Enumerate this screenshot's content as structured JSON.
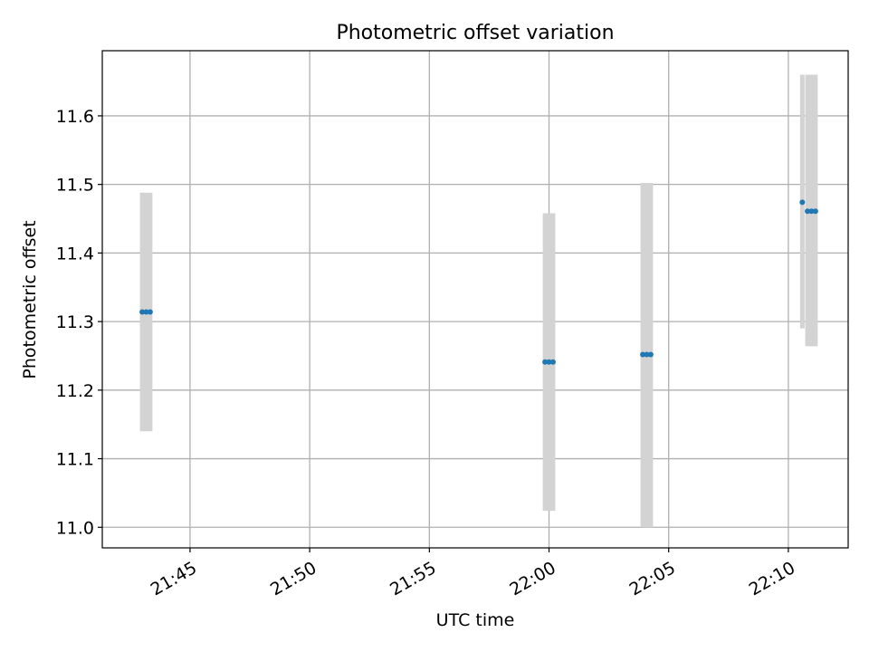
{
  "chart_data": {
    "type": "scatter",
    "title": "Photometric offset variation",
    "xlabel": "UTC time",
    "ylabel": "Photometric offset",
    "x_axis_kind": "time",
    "xlim": [
      "21:41:20",
      "22:12:30"
    ],
    "ylim": [
      10.97,
      11.695
    ],
    "x_ticks": [
      "21:45",
      "21:50",
      "21:55",
      "22:00",
      "22:05",
      "22:10"
    ],
    "y_ticks": [
      "11.0",
      "11.1",
      "11.2",
      "11.3",
      "11.4",
      "11.5",
      "11.6"
    ],
    "grid": true,
    "colors": {
      "points": "#1f77b4",
      "error_bars": "#d3d3d3",
      "grid": "#b0b0b0",
      "axes": "#000000"
    },
    "series": [
      {
        "points": [
          {
            "time": "21:43:00",
            "y": 11.314,
            "yerr_low": 11.14,
            "yerr_high": 11.488
          },
          {
            "time": "21:43:10",
            "y": 11.314,
            "yerr_low": 11.14,
            "yerr_high": 11.488
          },
          {
            "time": "21:43:20",
            "y": 11.314,
            "yerr_low": 11.14,
            "yerr_high": 11.488
          },
          {
            "time": "21:59:50",
            "y": 11.241,
            "yerr_low": 11.024,
            "yerr_high": 11.458
          },
          {
            "time": "22:00:00",
            "y": 11.241,
            "yerr_low": 11.024,
            "yerr_high": 11.458
          },
          {
            "time": "22:00:10",
            "y": 11.241,
            "yerr_low": 11.024,
            "yerr_high": 11.458
          },
          {
            "time": "22:03:55",
            "y": 11.252,
            "yerr_low": 11.0,
            "yerr_high": 11.502
          },
          {
            "time": "22:04:05",
            "y": 11.252,
            "yerr_low": 11.0,
            "yerr_high": 11.502
          },
          {
            "time": "22:04:15",
            "y": 11.252,
            "yerr_low": 11.0,
            "yerr_high": 11.502
          },
          {
            "time": "22:10:35",
            "y": 11.474,
            "yerr_low": 11.29,
            "yerr_high": 11.66
          },
          {
            "time": "22:10:48",
            "y": 11.461,
            "yerr_low": 11.264,
            "yerr_high": 11.66
          },
          {
            "time": "22:10:58",
            "y": 11.461,
            "yerr_low": 11.264,
            "yerr_high": 11.66
          },
          {
            "time": "22:11:08",
            "y": 11.461,
            "yerr_low": 11.264,
            "yerr_high": 11.66
          }
        ]
      }
    ]
  }
}
